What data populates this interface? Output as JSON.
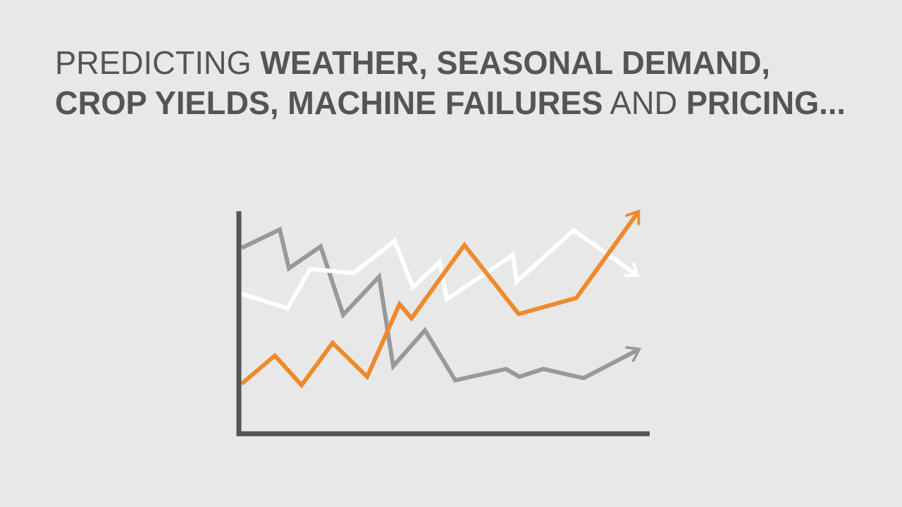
{
  "headline": {
    "line1": {
      "intro": "PREDICTING",
      "topics": "WEATHER, SEASONAL DEMAND,"
    },
    "line2": {
      "topics": "CROP YIELDS, MACHINE FAILURES",
      "joiner": "AND",
      "last": "PRICING..."
    }
  }
}
